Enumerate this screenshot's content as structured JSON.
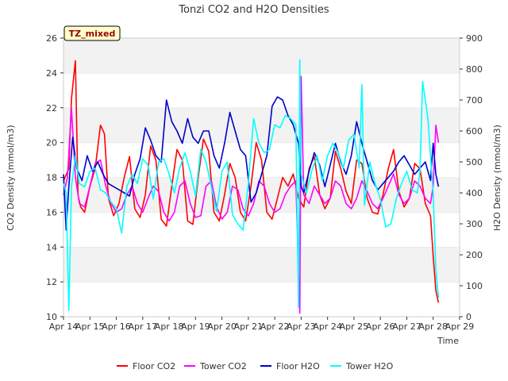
{
  "chart_data": {
    "type": "line",
    "title": "Tonzi CO2 and H2O Densities",
    "badge": "TZ_mixed",
    "xlabel": "Time",
    "ylabel": "CO2 Density (mmol/m3)",
    "y2label": "H2O Density (mmol/m3)",
    "xlim": [
      14,
      29
    ],
    "ylim": [
      10,
      26
    ],
    "y2lim": [
      0,
      900
    ],
    "x_ticks": [
      14,
      15,
      16,
      17,
      18,
      19,
      20,
      21,
      22,
      23,
      24,
      25,
      26,
      27,
      28,
      29
    ],
    "x_tick_labels": [
      "Apr 14",
      "Apr 15",
      "Apr 16",
      "Apr 17",
      "Apr 18",
      "Apr 19",
      "Apr 20",
      "Apr 21",
      "Apr 22",
      "Apr 23",
      "Apr 24",
      "Apr 25",
      "Apr 26",
      "Apr 27",
      "Apr 28",
      "Apr 29"
    ],
    "y_ticks": [
      10,
      12,
      14,
      16,
      18,
      20,
      22,
      24,
      26
    ],
    "y2_ticks": [
      0,
      100,
      200,
      300,
      400,
      500,
      600,
      700,
      800,
      900
    ],
    "grid": "horizontal bands",
    "legend_position": "bottom",
    "series": [
      {
        "name": "Floor CO2",
        "axis": "left",
        "color": "#ff0000",
        "x": [
          14.0,
          14.2,
          14.3,
          14.45,
          14.55,
          14.65,
          14.8,
          15.0,
          15.2,
          15.4,
          15.55,
          15.7,
          15.9,
          16.1,
          16.3,
          16.5,
          16.7,
          16.9,
          17.1,
          17.3,
          17.5,
          17.7,
          17.9,
          18.1,
          18.3,
          18.5,
          18.7,
          18.9,
          19.1,
          19.3,
          19.5,
          19.7,
          19.9,
          20.1,
          20.3,
          20.5,
          20.7,
          20.9,
          21.1,
          21.3,
          21.5,
          21.7,
          21.9,
          22.1,
          22.3,
          22.5,
          22.7,
          22.9,
          23.1,
          23.3,
          23.5,
          23.7,
          23.9,
          24.1,
          24.3,
          24.5,
          24.7,
          24.9,
          25.1,
          25.3,
          25.5,
          25.7,
          25.9,
          26.1,
          26.3,
          26.5,
          26.7,
          26.9,
          27.1,
          27.3,
          27.5,
          27.7,
          27.9,
          28.0,
          28.1,
          28.2
        ],
        "values": [
          17.8,
          18.5,
          22.5,
          24.7,
          17.0,
          16.3,
          16.0,
          17.5,
          18.5,
          21.0,
          20.5,
          16.8,
          15.8,
          16.5,
          18.0,
          19.2,
          16.2,
          15.7,
          17.0,
          19.8,
          19.0,
          15.6,
          15.2,
          17.5,
          19.6,
          19.0,
          15.5,
          15.3,
          18.0,
          20.2,
          19.5,
          16.0,
          15.5,
          17.0,
          18.8,
          18.0,
          16.0,
          15.5,
          17.5,
          20.0,
          19.0,
          16.0,
          15.6,
          16.8,
          18.0,
          17.5,
          18.2,
          16.8,
          16.3,
          18.5,
          19.2,
          17.0,
          16.2,
          16.8,
          19.5,
          18.5,
          17.2,
          16.5,
          19.0,
          18.8,
          16.8,
          16.0,
          15.9,
          17.0,
          18.5,
          19.6,
          17.2,
          16.3,
          16.8,
          18.8,
          18.5,
          16.5,
          15.8,
          13.5,
          11.5,
          10.8
        ]
      },
      {
        "name": "Tower CO2",
        "axis": "left",
        "color": "#ff00ff",
        "x": [
          14.0,
          14.15,
          14.3,
          14.45,
          14.6,
          14.8,
          15.0,
          15.2,
          15.4,
          15.6,
          15.8,
          16.0,
          16.2,
          16.4,
          16.6,
          16.8,
          17.0,
          17.2,
          17.4,
          17.6,
          17.8,
          18.0,
          18.2,
          18.4,
          18.6,
          18.8,
          19.0,
          19.2,
          19.4,
          19.6,
          19.8,
          20.0,
          20.2,
          20.4,
          20.6,
          20.8,
          21.0,
          21.2,
          21.4,
          21.6,
          21.8,
          22.0,
          22.2,
          22.4,
          22.6,
          22.8,
          22.95,
          23.0,
          23.1,
          23.3,
          23.5,
          23.7,
          23.9,
          24.1,
          24.3,
          24.5,
          24.7,
          24.9,
          25.1,
          25.3,
          25.5,
          25.7,
          25.9,
          26.1,
          26.3,
          26.5,
          26.7,
          26.9,
          27.1,
          27.3,
          27.5,
          27.7,
          27.9,
          28.0,
          28.1,
          28.2
        ],
        "values": [
          17.0,
          18.0,
          22.0,
          18.0,
          16.5,
          16.3,
          17.5,
          18.8,
          19.0,
          17.5,
          16.5,
          16.0,
          16.2,
          17.0,
          17.5,
          16.5,
          16.0,
          16.8,
          17.5,
          17.2,
          16.0,
          15.5,
          16.0,
          17.5,
          17.8,
          16.5,
          15.7,
          15.8,
          17.5,
          17.8,
          16.3,
          15.6,
          16.0,
          17.5,
          17.3,
          16.2,
          15.8,
          16.5,
          17.8,
          17.5,
          16.5,
          16.0,
          16.2,
          17.0,
          17.5,
          17.8,
          10.2,
          23.8,
          17.0,
          16.5,
          17.5,
          17.0,
          16.5,
          16.8,
          17.8,
          17.5,
          16.5,
          16.2,
          16.8,
          17.8,
          17.2,
          16.5,
          16.2,
          16.8,
          17.5,
          18.2,
          17.0,
          16.5,
          16.8,
          17.8,
          17.5,
          16.8,
          16.5,
          17.5,
          21.0,
          20.0
        ]
      },
      {
        "name": "Floor H2O",
        "axis": "right",
        "color": "#0000cc",
        "x": [
          14.0,
          14.1,
          14.2,
          14.35,
          14.5,
          14.7,
          14.9,
          15.1,
          15.3,
          15.5,
          15.7,
          15.9,
          16.1,
          16.3,
          16.5,
          16.7,
          16.9,
          17.1,
          17.3,
          17.5,
          17.7,
          17.9,
          18.1,
          18.3,
          18.5,
          18.7,
          18.9,
          19.1,
          19.3,
          19.5,
          19.7,
          19.9,
          20.1,
          20.3,
          20.5,
          20.7,
          20.9,
          21.1,
          21.3,
          21.5,
          21.7,
          21.9,
          22.1,
          22.3,
          22.5,
          22.7,
          22.9,
          23.0,
          23.1,
          23.3,
          23.5,
          23.7,
          23.9,
          24.1,
          24.3,
          24.5,
          24.7,
          24.9,
          25.1,
          25.3,
          25.5,
          25.7,
          25.9,
          26.1,
          26.3,
          26.5,
          26.7,
          26.9,
          27.1,
          27.3,
          27.5,
          27.7,
          27.9,
          28.0,
          28.1,
          28.2
        ],
        "values": [
          460,
          280,
          420,
          580,
          480,
          440,
          520,
          470,
          500,
          460,
          430,
          420,
          410,
          400,
          390,
          460,
          510,
          610,
          570,
          520,
          500,
          700,
          630,
          600,
          560,
          640,
          580,
          560,
          600,
          600,
          520,
          480,
          560,
          660,
          600,
          540,
          520,
          370,
          400,
          460,
          520,
          680,
          710,
          700,
          650,
          620,
          560,
          420,
          400,
          470,
          530,
          490,
          420,
          490,
          560,
          500,
          460,
          520,
          630,
          560,
          500,
          440,
          410,
          430,
          450,
          470,
          500,
          520,
          490,
          460,
          480,
          500,
          440,
          560,
          460,
          420
        ]
      },
      {
        "name": "Tower H2O",
        "axis": "right",
        "color": "#00ffff",
        "x": [
          14.0,
          14.1,
          14.2,
          14.3,
          14.45,
          14.6,
          14.8,
          15.0,
          15.2,
          15.4,
          15.6,
          15.8,
          16.0,
          16.2,
          16.4,
          16.6,
          16.8,
          17.0,
          17.2,
          17.4,
          17.6,
          17.8,
          18.0,
          18.2,
          18.4,
          18.6,
          18.8,
          19.0,
          19.2,
          19.4,
          19.6,
          19.8,
          20.0,
          20.2,
          20.4,
          20.6,
          20.8,
          21.0,
          21.2,
          21.4,
          21.6,
          21.8,
          22.0,
          22.2,
          22.4,
          22.6,
          22.8,
          22.9,
          22.95,
          23.0,
          23.2,
          23.4,
          23.6,
          23.8,
          24.0,
          24.2,
          24.4,
          24.6,
          24.8,
          25.0,
          25.2,
          25.3,
          25.4,
          25.6,
          25.8,
          26.0,
          26.2,
          26.4,
          26.6,
          26.8,
          27.0,
          27.2,
          27.4,
          27.5,
          27.6,
          27.8,
          28.0,
          28.1,
          28.2
        ],
        "values": [
          430,
          400,
          20,
          420,
          520,
          430,
          420,
          470,
          480,
          410,
          400,
          370,
          350,
          270,
          420,
          460,
          430,
          510,
          490,
          380,
          500,
          510,
          460,
          400,
          480,
          530,
          470,
          390,
          540,
          500,
          420,
          340,
          470,
          500,
          330,
          300,
          280,
          430,
          640,
          560,
          530,
          540,
          620,
          610,
          650,
          640,
          620,
          30,
          830,
          460,
          400,
          470,
          520,
          440,
          520,
          560,
          530,
          480,
          570,
          590,
          480,
          750,
          360,
          500,
          430,
          380,
          290,
          300,
          380,
          430,
          470,
          410,
          400,
          470,
          760,
          640,
          400,
          150,
          60
        ]
      }
    ]
  }
}
